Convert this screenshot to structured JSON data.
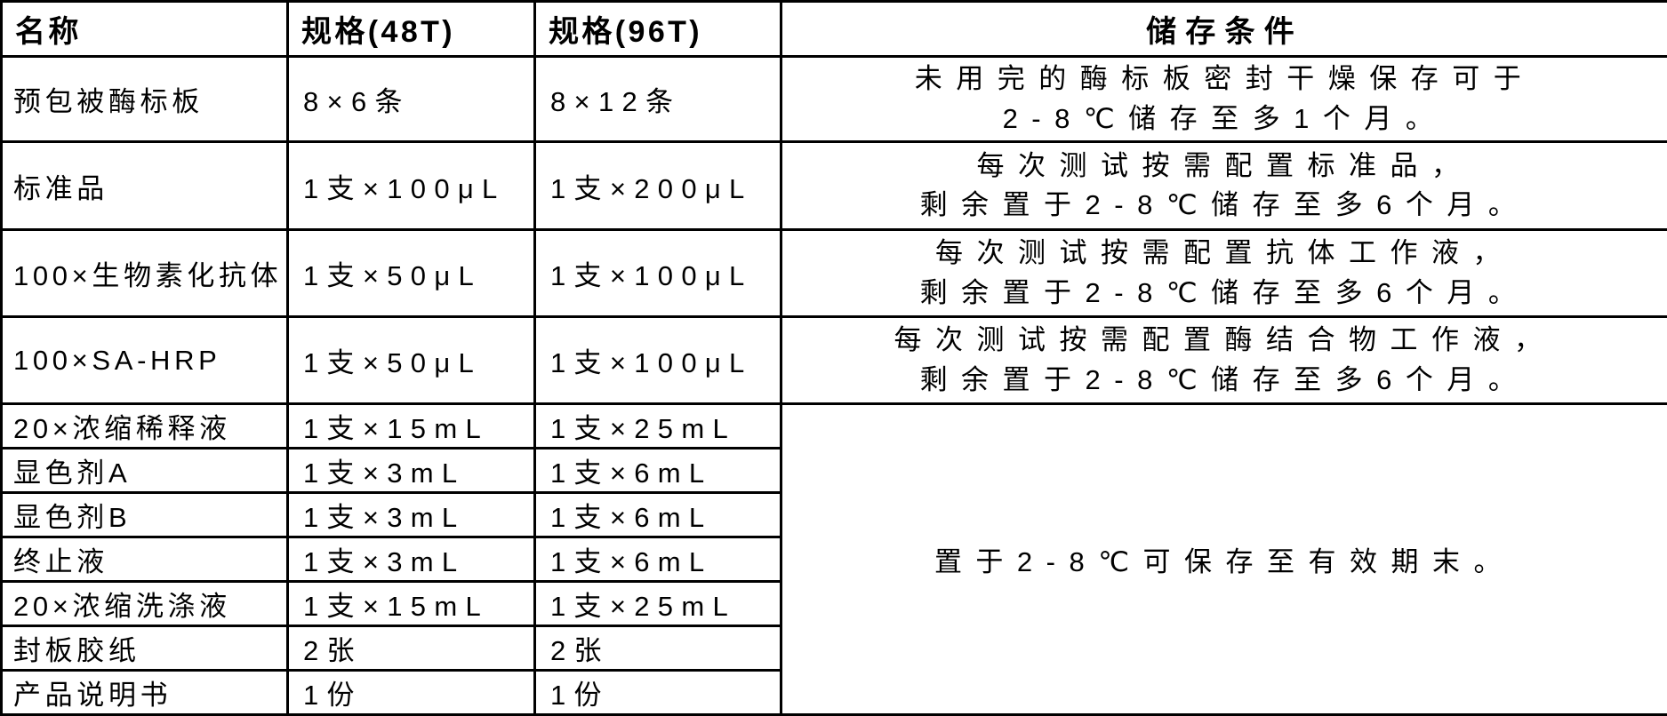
{
  "table": {
    "headers": {
      "name": "名称",
      "spec48": "规格(48T)",
      "spec96": "规格(96T)",
      "storage": "储存条件"
    },
    "rows": [
      {
        "name": "预包被酶标板",
        "spec48": "8×6条",
        "spec96": "8×12条",
        "storage": [
          "未用完的酶标板密封干燥保存可于",
          "2-8℃储存至多1个月。"
        ]
      },
      {
        "name": "标准品",
        "spec48": "1支×100μL",
        "spec96": "1支×200μL",
        "storage": [
          "每次测试按需配置标准品，",
          "剩余置于2-8℃储存至多6个月。"
        ]
      },
      {
        "name": "100×生物素化抗体",
        "spec48": "1支×50μL",
        "spec96": "1支×100μL",
        "storage": [
          "每次测试按需配置抗体工作液，",
          "剩余置于2-8℃储存至多6个月。"
        ]
      },
      {
        "name": "100×SA-HRP",
        "spec48": "1支×50μL",
        "spec96": "1支×100μL",
        "storage": [
          "每次测试按需配置酶结合物工作液，",
          "剩余置于2-8℃储存至多6个月。"
        ]
      },
      {
        "name": "20×浓缩稀释液",
        "spec48": "1支×15mL",
        "spec96": "1支×25mL"
      },
      {
        "name": "显色剂A",
        "spec48": "1支×3mL",
        "spec96": "1支×6mL"
      },
      {
        "name": "显色剂B",
        "spec48": "1支×3mL",
        "spec96": "1支×6mL"
      },
      {
        "name": "终止液",
        "spec48": "1支×3mL",
        "spec96": "1支×6mL"
      },
      {
        "name": "20×浓缩洗涤液",
        "spec48": "1支×15mL",
        "spec96": "1支×25mL"
      },
      {
        "name": "封板胶纸",
        "spec48": "2张",
        "spec96": "2张"
      },
      {
        "name": "产品说明书",
        "spec48": "1份",
        "spec96": "1份"
      }
    ],
    "merged_storage": "置于2-8℃可保存至有效期末。",
    "colors": {
      "border": "#000000",
      "text": "#000000",
      "background": "#ffffff"
    }
  }
}
